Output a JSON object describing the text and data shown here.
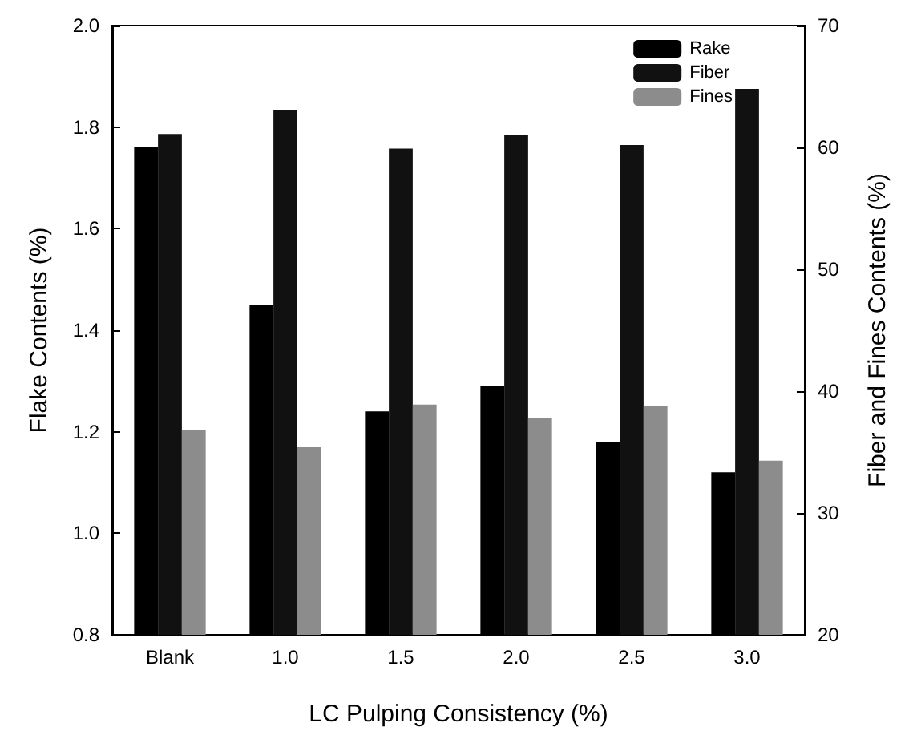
{
  "chart_data": {
    "type": "bar",
    "xlabel": "LC Pulping Consistency (%)",
    "ylabel": "Flake Contents (%)",
    "y2label": "Fiber and Fines Contents (%)",
    "categories": [
      "Blank",
      "1.0",
      "1.5",
      "2.0",
      "2.5",
      "3.0"
    ],
    "series": [
      {
        "name": "Rake",
        "color": "#000000",
        "values": [
          1.76,
          1.45,
          1.24,
          1.29,
          1.18,
          1.12
        ]
      },
      {
        "name": "Fiber",
        "color": "#111111",
        "axis": "y2",
        "values": [
          61.1,
          63.1,
          59.9,
          61.0,
          60.2,
          64.8
        ]
      },
      {
        "name": "Fines",
        "color": "#8c8c8c",
        "axis": "y2",
        "values": [
          36.8,
          35.4,
          38.9,
          37.8,
          38.8,
          34.3
        ]
      }
    ],
    "ylim": [
      0.8,
      2.0
    ],
    "yticks": [
      {
        "value": 0.8,
        "label": "0.8"
      },
      {
        "value": 1.0,
        "label": "1.0"
      },
      {
        "value": 1.2,
        "label": "1.2"
      },
      {
        "value": 1.4,
        "label": "1.4"
      },
      {
        "value": 1.6,
        "label": "1.6"
      },
      {
        "value": 1.8,
        "label": "1.8"
      },
      {
        "value": 2.0,
        "label": "2.0"
      }
    ],
    "y2lim": [
      20,
      70
    ],
    "y2ticks": [
      20,
      30,
      40,
      50,
      60,
      70
    ],
    "grid": false,
    "legend": "top right"
  }
}
